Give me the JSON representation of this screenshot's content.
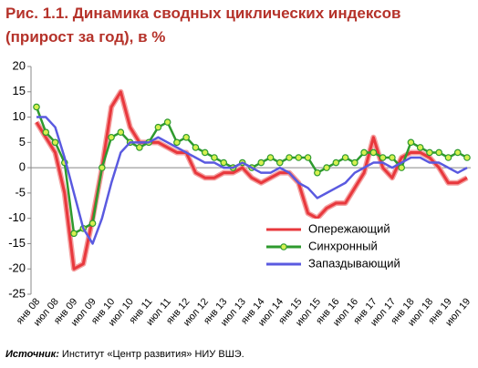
{
  "chart_data": {
    "type": "line",
    "title": [
      "Рис. 1.1. Динамика сводных циклических индексов",
      "(прирост за год), в %"
    ],
    "source_label": "Источник:",
    "source_text": "Институт «Центр развития» НИУ ВШЭ.",
    "categories": [
      "янв 08",
      null,
      "июл 08",
      null,
      "янв 09",
      null,
      "июл 09",
      null,
      "янв 10",
      null,
      "июл 10",
      null,
      "янв 11",
      null,
      "июл 11",
      null,
      "янв 12",
      null,
      "июл 12",
      null,
      "янв 13",
      null,
      "июл 13",
      null,
      "янв 14",
      null,
      "июл 14",
      null,
      "янв 15",
      null,
      "июл 15",
      null,
      "янв 16",
      null,
      "июл 16",
      null,
      "янв 17",
      null,
      "июл 17",
      null,
      "янв 18",
      null,
      "июл 18",
      null,
      "янв 19",
      null,
      "июл 19"
    ],
    "series": [
      {
        "name": "Опережающий",
        "color": "#e8383d",
        "values": [
          9,
          6,
          3,
          -5,
          -20,
          -19,
          -10,
          0,
          12,
          15,
          8,
          5,
          5,
          5,
          4,
          3,
          3,
          -1,
          -2,
          -2,
          -1,
          -1,
          0,
          -2,
          -3,
          -2,
          -1,
          -1,
          -3,
          -9,
          -10,
          -8,
          -7,
          -7,
          -4,
          -1,
          6,
          0,
          -2,
          2,
          3,
          3,
          2,
          0,
          -3,
          -3,
          -2
        ]
      },
      {
        "name": "Синхронный",
        "color": "#2e9a2e",
        "values": [
          12,
          7,
          5,
          1,
          -13,
          -12,
          -11,
          0,
          6,
          7,
          5,
          4,
          5,
          8,
          9,
          5,
          6,
          4,
          3,
          2,
          1,
          0,
          1,
          0,
          1,
          2,
          1,
          2,
          2,
          2,
          -1,
          0,
          1,
          2,
          1,
          3,
          3,
          2,
          2,
          0,
          5,
          4,
          3,
          3,
          2,
          3,
          2
        ]
      },
      {
        "name": "Запаздывающий",
        "color": "#5a5ae0",
        "values": [
          10,
          10,
          8,
          2,
          -5,
          -12,
          -15,
          -10,
          -3,
          3,
          5,
          5,
          5,
          6,
          5,
          4,
          3,
          2,
          1,
          1,
          0,
          0,
          1,
          0,
          -1,
          -1,
          0,
          -1,
          -3,
          -4,
          -6,
          -5,
          -4,
          -3,
          -1,
          0,
          1,
          1,
          0,
          1,
          2,
          2,
          1,
          1,
          0,
          -1,
          0
        ]
      }
    ],
    "ylim": [
      -25,
      20
    ],
    "yticks": [
      20,
      15,
      10,
      5,
      0,
      -5,
      -10,
      -15,
      -20,
      -25
    ],
    "legend": "lower right"
  }
}
